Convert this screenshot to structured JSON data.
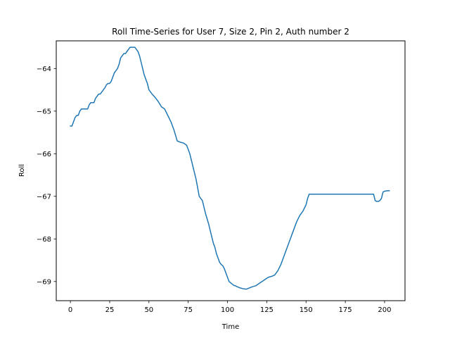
{
  "chart_data": {
    "type": "line",
    "title": "Roll Time-Series for User 7, Size 2, Pin 2, Auth number 2",
    "xlabel": "Time",
    "ylabel": "Roll",
    "xlim": [
      -9,
      213
    ],
    "ylim": [
      -69.45,
      -63.35
    ],
    "xticks": [
      0,
      25,
      50,
      75,
      100,
      125,
      150,
      175,
      200
    ],
    "yticks": [
      -69,
      -68,
      -67,
      -66,
      -65,
      -64
    ],
    "grid": false,
    "legend": "none",
    "line_color": "#1f77b4",
    "series": [
      {
        "x": [
          0,
          1,
          2,
          3,
          4,
          5,
          6,
          7,
          8,
          9,
          10,
          11,
          12,
          13,
          14,
          15,
          16,
          17,
          18,
          19,
          20,
          21,
          22,
          23,
          24,
          25,
          26,
          27,
          28,
          29,
          30,
          31,
          32,
          33,
          34,
          35,
          36,
          37,
          38,
          39,
          40,
          41,
          42,
          43,
          44,
          45,
          46,
          47,
          48,
          49,
          50,
          52,
          54,
          56,
          58,
          60,
          62,
          64,
          66,
          68,
          70,
          72,
          74,
          76,
          78,
          80,
          82,
          84,
          86,
          88,
          89,
          90,
          91,
          92,
          93,
          94,
          95,
          96,
          97,
          98,
          99,
          100,
          101,
          102,
          103,
          104,
          105,
          106,
          108,
          110,
          112,
          114,
          116,
          118,
          120,
          122,
          124,
          126,
          128,
          130,
          132,
          134,
          136,
          138,
          140,
          142,
          144,
          146,
          148,
          150,
          151,
          152,
          153,
          154,
          155,
          156,
          157,
          158,
          159,
          160,
          162,
          164,
          166,
          168,
          170,
          175,
          180,
          185,
          190,
          193,
          194,
          195,
          196,
          197,
          198,
          199,
          200,
          202,
          203
        ],
        "y": [
          -65.35,
          -65.35,
          -65.25,
          -65.15,
          -65.1,
          -65.1,
          -65.0,
          -64.95,
          -64.95,
          -64.95,
          -64.95,
          -64.95,
          -64.85,
          -64.8,
          -64.8,
          -64.8,
          -64.7,
          -64.65,
          -64.6,
          -64.6,
          -64.55,
          -64.5,
          -64.45,
          -64.38,
          -64.35,
          -64.35,
          -64.3,
          -64.2,
          -64.1,
          -64.05,
          -64.0,
          -63.9,
          -63.75,
          -63.7,
          -63.65,
          -63.65,
          -63.6,
          -63.55,
          -63.5,
          -63.5,
          -63.5,
          -63.5,
          -63.55,
          -63.6,
          -63.7,
          -63.85,
          -64.0,
          -64.15,
          -64.25,
          -64.35,
          -64.5,
          -64.6,
          -64.68,
          -64.78,
          -64.9,
          -64.95,
          -65.1,
          -65.25,
          -65.45,
          -65.7,
          -65.73,
          -65.75,
          -65.8,
          -66.0,
          -66.3,
          -66.6,
          -67.0,
          -67.1,
          -67.4,
          -67.65,
          -67.8,
          -67.95,
          -68.1,
          -68.2,
          -68.35,
          -68.45,
          -68.55,
          -68.6,
          -68.63,
          -68.7,
          -68.8,
          -68.9,
          -69.0,
          -69.03,
          -69.06,
          -69.09,
          -69.1,
          -69.12,
          -69.15,
          -69.17,
          -69.18,
          -69.15,
          -69.12,
          -69.1,
          -69.05,
          -69.0,
          -68.95,
          -68.9,
          -68.88,
          -68.85,
          -68.75,
          -68.6,
          -68.4,
          -68.2,
          -68.0,
          -67.8,
          -67.6,
          -67.45,
          -67.35,
          -67.2,
          -67.05,
          -66.95,
          -66.95,
          -66.95,
          -66.95,
          -66.95,
          -66.95,
          -66.95,
          -66.95,
          -66.95,
          -66.95,
          -66.95,
          -66.95,
          -66.95,
          -66.95,
          -66.95,
          -66.95,
          -66.95,
          -66.95,
          -66.95,
          -67.1,
          -67.12,
          -67.12,
          -67.1,
          -67.05,
          -66.9,
          -66.88,
          -66.87,
          -66.87
        ]
      }
    ]
  }
}
